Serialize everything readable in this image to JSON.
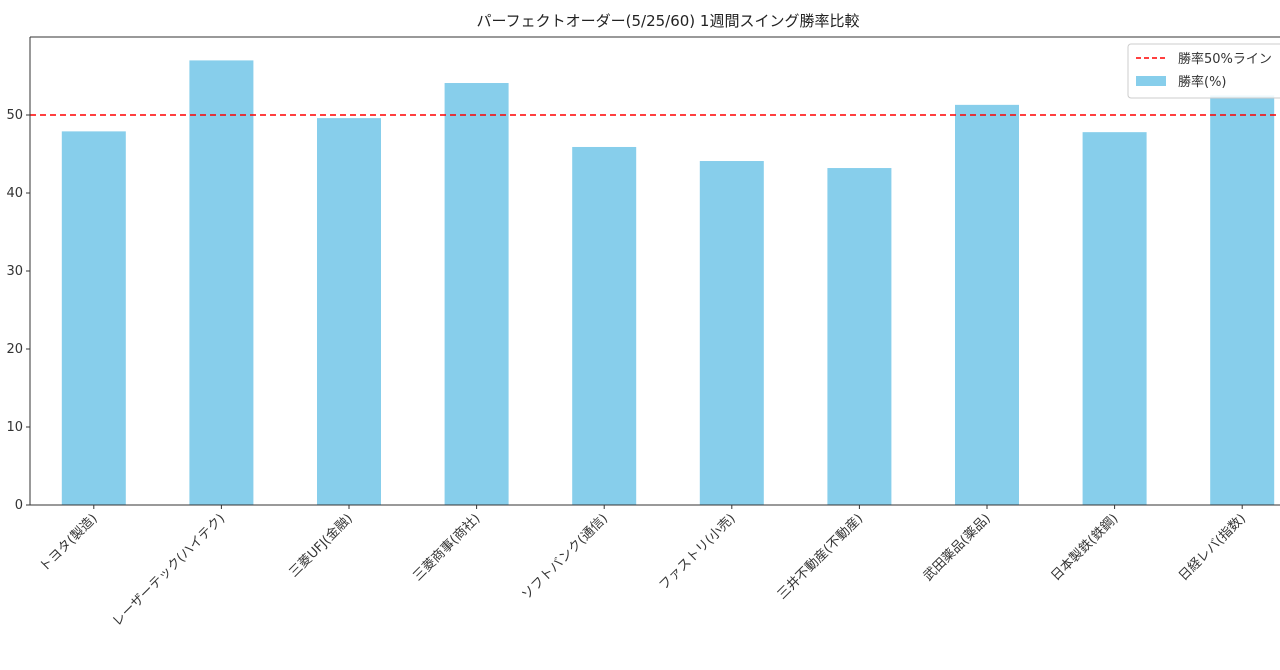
{
  "chart_data": {
    "type": "bar",
    "title": "パーフェクトオーダー(5/25/60) 1週間スイング勝率比較",
    "xlabel": "",
    "ylabel": "",
    "categories": [
      "トヨタ(製造)",
      "レーザーテック(ハイテク)",
      "三菱UFJ(金融)",
      "三菱商事(商社)",
      "ソフトバンク(通信)",
      "ファストリ(小売)",
      "三井不動産(不動産)",
      "武田薬品(薬品)",
      "日本製鉄(鉄鋼)",
      "日経レバ(指数)"
    ],
    "series": [
      {
        "name": "勝率(%)",
        "values": [
          47.9,
          57.0,
          49.6,
          54.1,
          45.9,
          44.1,
          43.2,
          51.3,
          47.8,
          52.5
        ],
        "color": "#87ceeb"
      }
    ],
    "reference_line": {
      "name": "勝率50%ライン",
      "y": 50,
      "color": "#ff0000",
      "style": "dashed"
    },
    "ylim": [
      0,
      60
    ],
    "yticks": [
      0,
      10,
      20,
      30,
      40,
      50
    ],
    "grid": false,
    "legend": "top-right"
  }
}
